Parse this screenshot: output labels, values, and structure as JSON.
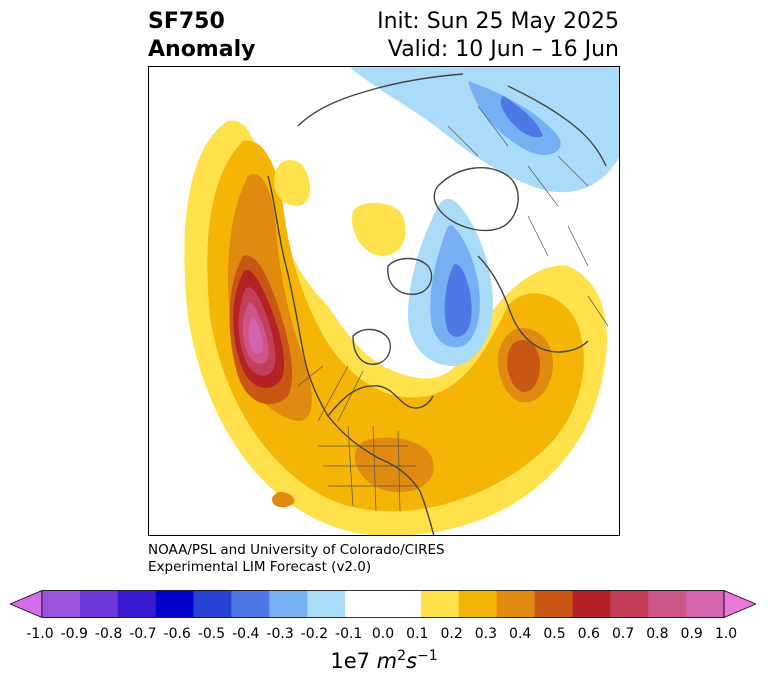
{
  "header": {
    "variable": "SF750",
    "field": "Anomaly",
    "init": "Init: Sun 25 May 2025",
    "valid": "Valid: 10 Jun – 16 Jun"
  },
  "credit": {
    "line1": "NOAA/PSL and University of Colorado/CIRES",
    "line2": "Experimental LIM Forecast (v2.0)"
  },
  "colorbar": {
    "ticks": [
      "-1.0",
      "-0.9",
      "-0.8",
      "-0.7",
      "-0.6",
      "-0.5",
      "-0.4",
      "-0.3",
      "-0.2",
      "-0.1",
      "0.0",
      "0.1",
      "0.2",
      "0.3",
      "0.4",
      "0.5",
      "0.6",
      "0.7",
      "0.8",
      "0.9",
      "1.0"
    ],
    "colors": [
      "#9b55dd",
      "#6e38d8",
      "#3a1ad0",
      "#0000c8",
      "#2640d4",
      "#4f78e6",
      "#76b0f2",
      "#aadcfa",
      "#ffffff",
      "#ffffff",
      "#ffe14b",
      "#f4b506",
      "#e08a10",
      "#c85714",
      "#b42225",
      "#c33e58",
      "#cc5688",
      "#d564b0"
    ],
    "under_color": "#d56ce8",
    "over_color": "#e978db",
    "unit_base": "1e7",
    "unit_m": "m",
    "unit_m_exp": "2",
    "unit_s": "s",
    "unit_s_exp": "−1"
  }
}
